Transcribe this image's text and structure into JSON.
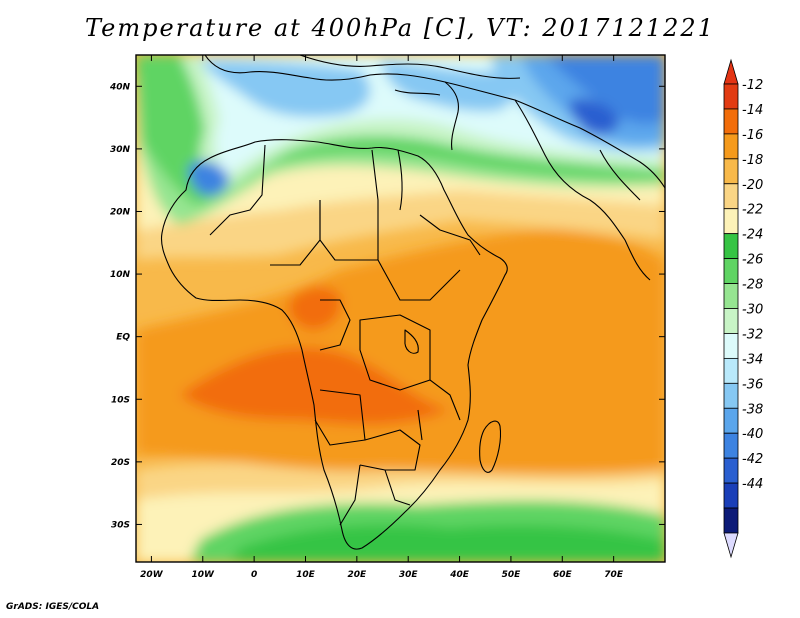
{
  "title": "Temperature at 400hPa [C], VT: 2017121221",
  "credit": "GrADS: IGES/COLA",
  "map": {
    "lon_range": [
      -23,
      80
    ],
    "lat_range": [
      -36,
      45
    ],
    "lon_ticks": [
      {
        "value": -20,
        "label": "20W"
      },
      {
        "value": -10,
        "label": "10W"
      },
      {
        "value": 0,
        "label": "0"
      },
      {
        "value": 10,
        "label": "10E"
      },
      {
        "value": 20,
        "label": "20E"
      },
      {
        "value": 30,
        "label": "30E"
      },
      {
        "value": 40,
        "label": "40E"
      },
      {
        "value": 50,
        "label": "50E"
      },
      {
        "value": 60,
        "label": "60E"
      },
      {
        "value": 70,
        "label": "70E"
      }
    ],
    "lat_ticks": [
      {
        "value": 40,
        "label": "40N"
      },
      {
        "value": 30,
        "label": "30N"
      },
      {
        "value": 20,
        "label": "20N"
      },
      {
        "value": 10,
        "label": "10N"
      },
      {
        "value": 0,
        "label": "EQ"
      },
      {
        "value": -10,
        "label": "10S"
      },
      {
        "value": -20,
        "label": "20S"
      },
      {
        "value": -30,
        "label": "30S"
      }
    ]
  },
  "colorbar": {
    "levels": [
      "-12",
      "-14",
      "-16",
      "-18",
      "-20",
      "-22",
      "-24",
      "-26",
      "-28",
      "-30",
      "-32",
      "-34",
      "-36",
      "-38",
      "-40",
      "-42",
      "-44"
    ],
    "colors": [
      "#e23b12",
      "#f26d0a",
      "#f59a1c",
      "#f8b94a",
      "#fad585",
      "#fdf2b8",
      "#36c444",
      "#5fd463",
      "#96e591",
      "#c8f4c6",
      "#ddfbfb",
      "#b9e9fb",
      "#86c8f3",
      "#5ba6ec",
      "#3d83e1",
      "#2a5fd0",
      "#1a3fb8",
      "#0d1b78"
    ],
    "top_arrow": "#e33414",
    "bottom_arrow": "#dddbff"
  }
}
